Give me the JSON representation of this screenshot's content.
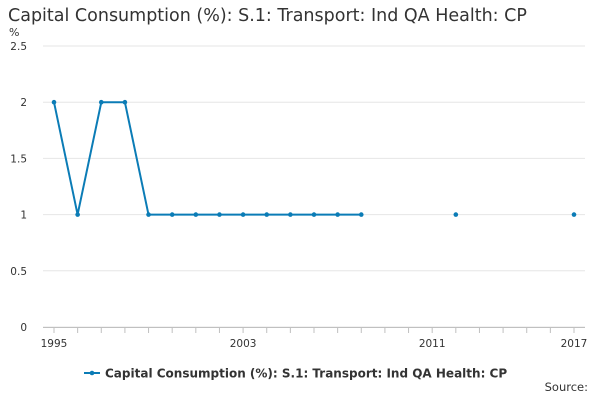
{
  "chart_data": {
    "type": "line",
    "title": "Capital Consumption (%): S.1: Transport: Ind QA Health: CP",
    "xlabel": "",
    "ylabel": "%",
    "ylim": [
      0,
      2.5
    ],
    "xlim": [
      1995,
      2017
    ],
    "y_ticks": [
      "0",
      "0.5",
      "1",
      "1.5",
      "2",
      "2.5"
    ],
    "x_ticks": [
      "1995",
      "2003",
      "2011",
      "2017"
    ],
    "grid": "horizontal",
    "legend_position": "bottom",
    "series": [
      {
        "name": "Capital Consumption (%): S.1: Transport: Ind QA Health: CP",
        "color": "#0b7cb6",
        "points": [
          {
            "x": 1995,
            "y": 2
          },
          {
            "x": 1996,
            "y": 1
          },
          {
            "x": 1997,
            "y": 2
          },
          {
            "x": 1998,
            "y": 2
          },
          {
            "x": 1999,
            "y": 1
          },
          {
            "x": 2000,
            "y": 1
          },
          {
            "x": 2001,
            "y": 1
          },
          {
            "x": 2002,
            "y": 1
          },
          {
            "x": 2003,
            "y": 1
          },
          {
            "x": 2004,
            "y": 1
          },
          {
            "x": 2005,
            "y": 1
          },
          {
            "x": 2006,
            "y": 1
          },
          {
            "x": 2007,
            "y": 1
          },
          {
            "x": 2008,
            "y": 1
          },
          {
            "x": 2012,
            "y": 1
          },
          {
            "x": 2017,
            "y": 1
          }
        ]
      }
    ]
  },
  "source_label": "Source:"
}
